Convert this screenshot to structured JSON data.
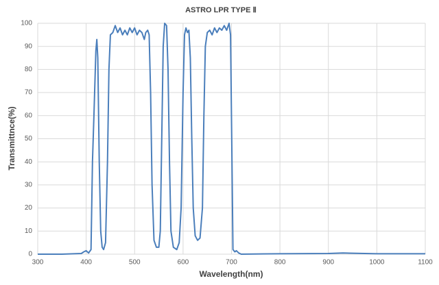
{
  "chart_data": {
    "type": "line",
    "title": "ASTRO LPR TYPE Ⅱ",
    "x_label": "Wavelength(nm)",
    "y_label": "Transmittnce(%)",
    "x": [
      300,
      350,
      390,
      395,
      400,
      405,
      410,
      413,
      416,
      420,
      422,
      424,
      427,
      430,
      433,
      436,
      440,
      444,
      447,
      450,
      455,
      460,
      465,
      470,
      475,
      480,
      485,
      490,
      495,
      500,
      505,
      510,
      515,
      520,
      523,
      527,
      530,
      533,
      536,
      540,
      545,
      550,
      553,
      556,
      559,
      562,
      566,
      569,
      572,
      575,
      580,
      587,
      592,
      596,
      600,
      603,
      606,
      609,
      612,
      615,
      618,
      621,
      625,
      630,
      635,
      640,
      643,
      646,
      650,
      655,
      660,
      665,
      670,
      675,
      680,
      685,
      690,
      695,
      698,
      701,
      703,
      707,
      710,
      715,
      720,
      800,
      900,
      930,
      1000,
      1100
    ],
    "values": [
      0,
      0,
      0.3,
      1,
      1.5,
      0.5,
      2,
      40,
      60,
      88,
      93,
      85,
      40,
      10,
      3,
      2,
      5,
      40,
      80,
      95,
      96,
      99,
      96,
      98,
      95,
      97,
      95,
      98,
      96,
      98,
      95,
      97,
      96,
      93,
      96,
      97,
      95,
      70,
      30,
      6,
      3,
      3,
      10,
      50,
      90,
      100,
      99,
      80,
      40,
      10,
      3,
      2,
      5,
      20,
      70,
      95,
      98,
      96,
      97,
      85,
      50,
      20,
      8,
      6,
      7,
      20,
      60,
      90,
      96,
      97,
      95,
      98,
      96,
      98,
      97,
      99,
      97,
      100,
      95,
      40,
      2,
      1,
      1.5,
      0.5,
      0,
      0.2,
      0.3,
      0.5,
      0.2,
      0.2
    ],
    "color": "#4a7ebb",
    "xlim": [
      300,
      1100
    ],
    "xticks": [
      300,
      400,
      500,
      600,
      700,
      800,
      900,
      1000,
      1100
    ],
    "ylim": [
      0,
      100
    ],
    "yticks": [
      0,
      10,
      20,
      30,
      40,
      50,
      60,
      70,
      80,
      90,
      100
    ],
    "grid": true
  }
}
